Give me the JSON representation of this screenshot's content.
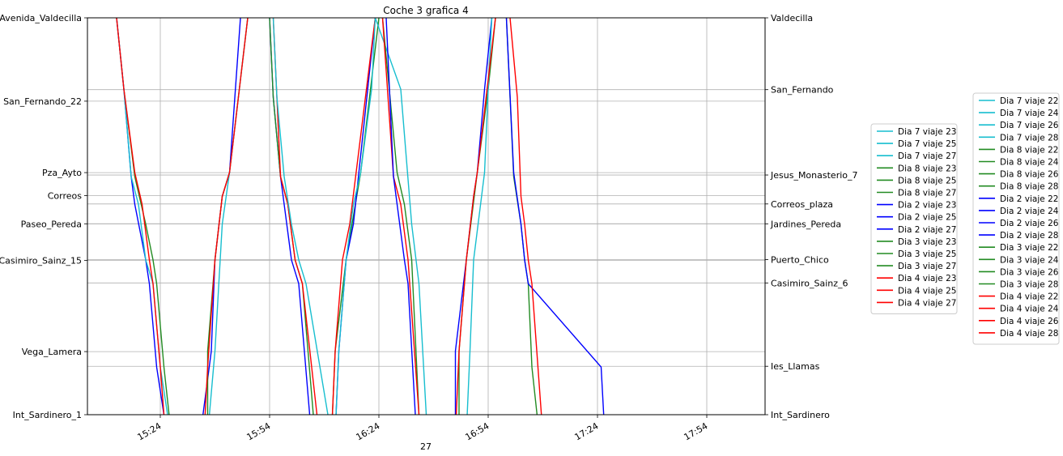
{
  "chart_data": {
    "type": "line",
    "title": "Coche 3 grafica 4",
    "xlabel": "27",
    "ylabel": "",
    "x_axis": {
      "min": "15:04",
      "max": "18:10",
      "ticks": [
        "15:24",
        "15:54",
        "16:24",
        "16:54",
        "17:24",
        "17:54"
      ]
    },
    "ylim": [
      0,
      100
    ],
    "grid": true,
    "left_stops": [
      {
        "name": "Avenida_Valdecilla",
        "value": 100
      },
      {
        "name": "San_Fernando_22",
        "value": 79
      },
      {
        "name": "Pza_Ayto",
        "value": 61
      },
      {
        "name": "Correos",
        "value": 55.2
      },
      {
        "name": "Paseo_Pereda",
        "value": 48.1
      },
      {
        "name": "Casimiro_Sainz_15",
        "value": 38.9
      },
      {
        "name": "Vega_Lamera",
        "value": 15.9
      },
      {
        "name": "Int_Sardinero_1",
        "value": 0
      }
    ],
    "right_stops": [
      {
        "name": "Valdecilla",
        "value": 100
      },
      {
        "name": "San_Fernando",
        "value": 81.9
      },
      {
        "name": "Jesus_Monasterio_7",
        "value": 60.4
      },
      {
        "name": "Correos_plaza",
        "value": 53.1
      },
      {
        "name": "Jardines_Pereda",
        "value": 48.1
      },
      {
        "name": "Puerto_Chico",
        "value": 39.1
      },
      {
        "name": "Casimiro_Sainz_6",
        "value": 33.2
      },
      {
        "name": "Ies_Llamas",
        "value": 12.2
      },
      {
        "name": "Int_Sardinero",
        "value": 0
      }
    ],
    "legend_position": "outside-right",
    "legend_a": [
      {
        "label": "Dia 7 viaje 23",
        "color": "#17becf"
      },
      {
        "label": "Dia 7 viaje 25",
        "color": "#17becf"
      },
      {
        "label": "Dia 7 viaje 27",
        "color": "#17becf"
      },
      {
        "label": "Dia 8 viaje 23",
        "color": "#228b22"
      },
      {
        "label": "Dia 8 viaje 25",
        "color": "#228b22"
      },
      {
        "label": "Dia 8 viaje 27",
        "color": "#228b22"
      },
      {
        "label": "Dia 2 viaje 23",
        "color": "#0000ff"
      },
      {
        "label": "Dia 2 viaje 25",
        "color": "#0000ff"
      },
      {
        "label": "Dia 2 viaje 27",
        "color": "#0000ff"
      },
      {
        "label": "Dia 3 viaje 23",
        "color": "#228b22"
      },
      {
        "label": "Dia 3 viaje 25",
        "color": "#228b22"
      },
      {
        "label": "Dia 3 viaje 27",
        "color": "#228b22"
      },
      {
        "label": "Dia 4 viaje 23",
        "color": "#ff0000"
      },
      {
        "label": "Dia 4 viaje 25",
        "color": "#ff0000"
      },
      {
        "label": "Dia 4 viaje 27",
        "color": "#ff0000"
      }
    ],
    "legend_b": [
      {
        "label": "Dia 7 viaje 22",
        "color": "#17becf"
      },
      {
        "label": "Dia 7 viaje 24",
        "color": "#17becf"
      },
      {
        "label": "Dia 7 viaje 26",
        "color": "#17becf"
      },
      {
        "label": "Dia 7 viaje 28",
        "color": "#17becf"
      },
      {
        "label": "Dia 8 viaje 22",
        "color": "#228b22"
      },
      {
        "label": "Dia 8 viaje 24",
        "color": "#228b22"
      },
      {
        "label": "Dia 8 viaje 26",
        "color": "#228b22"
      },
      {
        "label": "Dia 8 viaje 28",
        "color": "#228b22"
      },
      {
        "label": "Dia 2 viaje 22",
        "color": "#0000ff"
      },
      {
        "label": "Dia 2 viaje 24",
        "color": "#0000ff"
      },
      {
        "label": "Dia 2 viaje 26",
        "color": "#0000ff"
      },
      {
        "label": "Dia 2 viaje 28",
        "color": "#0000ff"
      },
      {
        "label": "Dia 3 viaje 22",
        "color": "#228b22"
      },
      {
        "label": "Dia 3 viaje 24",
        "color": "#228b22"
      },
      {
        "label": "Dia 3 viaje 26",
        "color": "#228b22"
      },
      {
        "label": "Dia 3 viaje 28",
        "color": "#228b22"
      },
      {
        "label": "Dia 4 viaje 22",
        "color": "#ff0000"
      },
      {
        "label": "Dia 4 viaje 24",
        "color": "#ff0000"
      },
      {
        "label": "Dia 4 viaje 26",
        "color": "#ff0000"
      },
      {
        "label": "Dia 4 viaje 28",
        "color": "#ff0000"
      }
    ],
    "series": [
      {
        "color": "#228b22",
        "points": [
          [
            "15:12",
            100
          ],
          [
            "15:14",
            82
          ],
          [
            "15:17",
            60
          ],
          [
            "15:20",
            48
          ],
          [
            "15:22",
            39
          ],
          [
            "15:23",
            33
          ],
          [
            "15:25",
            12
          ],
          [
            "15:27",
            -5
          ]
        ]
      },
      {
        "color": "#0000ff",
        "points": [
          [
            "15:12",
            100
          ],
          [
            "15:14",
            82
          ],
          [
            "15:16",
            60
          ],
          [
            "15:17",
            53
          ],
          [
            "15:20",
            39
          ],
          [
            "15:21",
            33
          ],
          [
            "15:23",
            12
          ],
          [
            "15:25",
            0
          ]
        ]
      },
      {
        "color": "#17becf",
        "points": [
          [
            "15:12",
            100
          ],
          [
            "15:14",
            82
          ],
          [
            "15:16",
            60
          ],
          [
            "15:18",
            53
          ],
          [
            "15:20",
            39
          ],
          [
            "15:22",
            33
          ],
          [
            "15:24",
            12
          ],
          [
            "15:26",
            0
          ]
        ]
      },
      {
        "color": "#ff0000",
        "points": [
          [
            "15:12",
            100
          ],
          [
            "15:14",
            82
          ],
          [
            "15:17",
            61
          ],
          [
            "15:19",
            53
          ],
          [
            "15:21",
            39
          ],
          [
            "15:22",
            33
          ],
          [
            "15:24",
            12
          ],
          [
            "15:25",
            0
          ]
        ]
      },
      {
        "color": "#0000ff",
        "points": [
          [
            "15:35",
            -5
          ],
          [
            "15:38",
            16
          ],
          [
            "15:39",
            39
          ],
          [
            "15:41",
            55
          ],
          [
            "15:43",
            61
          ],
          [
            "15:46",
            100
          ]
        ]
      },
      {
        "color": "#228b22",
        "points": [
          [
            "15:37",
            -5
          ],
          [
            "15:37",
            16
          ],
          [
            "15:39",
            39
          ],
          [
            "15:41",
            55
          ],
          [
            "15:43",
            61
          ],
          [
            "15:48",
            100
          ]
        ]
      },
      {
        "color": "#17becf",
        "points": [
          [
            "15:37",
            -5
          ],
          [
            "15:39",
            16
          ],
          [
            "15:41",
            48
          ],
          [
            "15:43",
            61
          ],
          [
            "15:48",
            100
          ]
        ]
      },
      {
        "color": "#ff0000",
        "points": [
          [
            "15:36",
            -5
          ],
          [
            "15:37",
            12
          ],
          [
            "15:39",
            39
          ],
          [
            "15:41",
            55
          ],
          [
            "15:43",
            61
          ],
          [
            "15:48",
            100
          ]
        ]
      },
      {
        "color": "#0000ff",
        "points": [
          [
            "15:54",
            100
          ],
          [
            "15:55",
            80
          ],
          [
            "15:57",
            60
          ],
          [
            "15:58",
            53
          ],
          [
            "15:60",
            39
          ],
          [
            "15:62",
            33
          ],
          [
            "15:65",
            0
          ]
        ]
      },
      {
        "color": "#228b22",
        "points": [
          [
            "15:54",
            100
          ],
          [
            "15:55",
            80
          ],
          [
            "15:57",
            60
          ],
          [
            "15:59",
            53
          ],
          [
            "15:61",
            39
          ],
          [
            "15:63",
            33
          ],
          [
            "15:66",
            0
          ]
        ]
      },
      {
        "color": "#ff0000",
        "points": [
          [
            "15:55",
            100
          ],
          [
            "15:56",
            80
          ],
          [
            "15:57",
            60
          ],
          [
            "15:59",
            53
          ],
          [
            "15:61",
            39
          ],
          [
            "15:63",
            33
          ],
          [
            "15:67",
            0
          ]
        ]
      },
      {
        "color": "#17becf",
        "points": [
          [
            "15:55",
            100
          ],
          [
            "15:56",
            80
          ],
          [
            "15:58",
            60
          ],
          [
            "15:60",
            48
          ],
          [
            "15:62",
            39
          ],
          [
            "15:64",
            33
          ],
          [
            "15:70",
            0
          ]
        ]
      },
      {
        "color": "#228b22",
        "points": [
          [
            "16:11",
            -5
          ],
          [
            "16:12",
            16
          ],
          [
            "16:15",
            39
          ],
          [
            "16:19",
            61
          ],
          [
            "16:24",
            100
          ]
        ]
      },
      {
        "color": "#0000ff",
        "points": [
          [
            "16:12",
            -5
          ],
          [
            "16:13",
            16
          ],
          [
            "16:15",
            39
          ],
          [
            "16:17",
            48
          ],
          [
            "16:23",
            100
          ]
        ]
      },
      {
        "color": "#ff0000",
        "points": [
          [
            "16:11",
            -5
          ],
          [
            "16:12",
            16
          ],
          [
            "16:14",
            39
          ],
          [
            "16:16",
            48
          ],
          [
            "16:23",
            100
          ]
        ]
      },
      {
        "color": "#17becf",
        "points": [
          [
            "16:12",
            -5
          ],
          [
            "16:13",
            16
          ],
          [
            "16:15",
            39
          ],
          [
            "16:17",
            53
          ],
          [
            "16:19",
            61
          ],
          [
            "16:22",
            82
          ],
          [
            "16:23",
            100
          ],
          [
            "16:30",
            82
          ],
          [
            "16:33",
            48
          ],
          [
            "16:35",
            33
          ],
          [
            "16:37",
            0
          ]
        ]
      },
      {
        "color": "#228b22",
        "points": [
          [
            "16:25",
            100
          ],
          [
            "16:29",
            61
          ],
          [
            "16:31",
            53
          ],
          [
            "16:33",
            39
          ],
          [
            "16:35",
            0
          ]
        ]
      },
      {
        "color": "#ff0000",
        "points": [
          [
            "16:25",
            100
          ],
          [
            "16:28",
            60
          ],
          [
            "16:30",
            53
          ],
          [
            "16:32",
            39
          ],
          [
            "16:35",
            0
          ]
        ]
      },
      {
        "color": "#0000ff",
        "points": [
          [
            "16:26",
            100
          ],
          [
            "16:28",
            60
          ],
          [
            "16:31",
            39
          ],
          [
            "16:32",
            33
          ],
          [
            "16:34",
            0
          ]
        ]
      },
      {
        "color": "#0000ff",
        "points": [
          [
            "16:45",
            -5
          ],
          [
            "16:45",
            16
          ],
          [
            "16:48",
            39
          ],
          [
            "16:50",
            55
          ],
          [
            "16:51",
            61
          ],
          [
            "16:53",
            82
          ],
          [
            "16:55",
            100
          ]
        ]
      },
      {
        "color": "#228b22",
        "points": [
          [
            "16:46",
            -5
          ],
          [
            "16:46",
            16
          ],
          [
            "16:48",
            39
          ],
          [
            "16:51",
            61
          ],
          [
            "16:54",
            82
          ],
          [
            "16:56",
            100
          ]
        ]
      },
      {
        "color": "#17becf",
        "points": [
          [
            "16:48",
            -5
          ],
          [
            "16:49",
            16
          ],
          [
            "16:50",
            39
          ],
          [
            "16:53",
            61
          ],
          [
            "16:54",
            82
          ],
          [
            "16:55",
            100
          ]
        ]
      },
      {
        "color": "#ff0000",
        "points": [
          [
            "16:45",
            -5
          ],
          [
            "16:46",
            16
          ],
          [
            "16:48",
            39
          ],
          [
            "16:50",
            55
          ],
          [
            "16:51",
            61
          ],
          [
            "16:56",
            100
          ]
        ]
      },
      {
        "color": "#228b22",
        "points": [
          [
            "16:59",
            100
          ],
          [
            "16:61",
            60
          ],
          [
            "16:63",
            48
          ],
          [
            "16:64",
            39
          ],
          [
            "16:65",
            33
          ],
          [
            "16:66",
            12
          ],
          [
            "16:68",
            -5
          ]
        ]
      },
      {
        "color": "#0000ff",
        "points": [
          [
            "16:59",
            100
          ],
          [
            "16:61",
            61
          ],
          [
            "16:63",
            48
          ],
          [
            "16:64",
            39
          ],
          [
            "16:65",
            33
          ],
          [
            "16:85",
            12
          ],
          [
            "16:86",
            -5
          ]
        ]
      },
      {
        "color": "#ff0000",
        "points": [
          [
            "16:60",
            100
          ],
          [
            "16:62",
            80
          ],
          [
            "16:63",
            55
          ],
          [
            "16:64",
            48
          ],
          [
            "16:65",
            39
          ],
          [
            "16:66",
            33
          ],
          [
            "16:69",
            -5
          ]
        ]
      }
    ]
  }
}
